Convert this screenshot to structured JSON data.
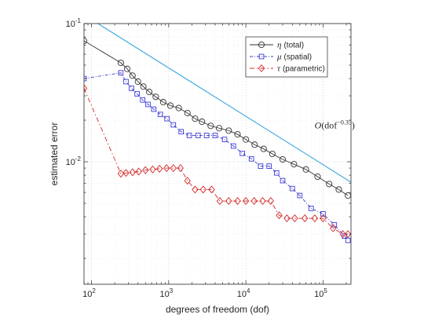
{
  "chart_data": {
    "type": "line",
    "xscale": "log",
    "yscale": "log",
    "xlim": [
      80,
      230000
    ],
    "ylim": [
      0.0013,
      0.1
    ],
    "xlabel": "degrees of freedom (dof)",
    "ylabel": "estimated error",
    "grid": true,
    "legend_position": "top-right",
    "x_ticks": [
      {
        "value": 100,
        "base": "10",
        "exp": "2"
      },
      {
        "value": 1000,
        "base": "10",
        "exp": "3"
      },
      {
        "value": 10000,
        "base": "10",
        "exp": "4"
      },
      {
        "value": 100000,
        "base": "10",
        "exp": "5"
      }
    ],
    "y_ticks": [
      {
        "value": 0.01,
        "base": "10",
        "exp": "-2"
      },
      {
        "value": 0.1,
        "base": "10",
        "exp": "-1"
      }
    ],
    "series": [
      {
        "symbol": "η",
        "name": "(total)",
        "color": "#333333",
        "marker": "circle",
        "dash": "",
        "x": [
          80,
          240,
          290,
          340,
          400,
          470,
          560,
          680,
          850,
          1050,
          1350,
          1750,
          2200,
          2700,
          3500,
          4500,
          6000,
          7800,
          10000,
          13000,
          17000,
          22000,
          30000,
          42000,
          60000,
          85000,
          120000,
          160000,
          210000
        ],
        "y": [
          0.075,
          0.052,
          0.047,
          0.042,
          0.038,
          0.035,
          0.032,
          0.0295,
          0.027,
          0.0255,
          0.0245,
          0.0225,
          0.0205,
          0.0195,
          0.0182,
          0.0175,
          0.0168,
          0.0158,
          0.0145,
          0.0133,
          0.0124,
          0.0114,
          0.0104,
          0.0096,
          0.0088,
          0.0078,
          0.0069,
          0.0063,
          0.0057
        ]
      },
      {
        "symbol": "μ",
        "name": "(spatial)",
        "color": "#3b3bd6",
        "marker": "square",
        "dash": "4 2 1 2",
        "x": [
          80,
          240,
          280,
          330,
          390,
          460,
          540,
          640,
          780,
          950,
          1150,
          1450,
          1850,
          2400,
          3100,
          4000,
          5300,
          6900,
          9000,
          11800,
          15500,
          20000,
          25000,
          30000,
          40000,
          50000,
          70000,
          100000,
          140000,
          190000,
          210000
        ],
        "y": [
          0.04,
          0.044,
          0.038,
          0.034,
          0.031,
          0.028,
          0.026,
          0.024,
          0.022,
          0.0205,
          0.0185,
          0.0165,
          0.0155,
          0.0155,
          0.0155,
          0.0155,
          0.0145,
          0.013,
          0.0115,
          0.0105,
          0.0093,
          0.0093,
          0.0083,
          0.0073,
          0.0064,
          0.0057,
          0.0046,
          0.0042,
          0.0035,
          0.0029,
          0.0027
        ]
      },
      {
        "symbol": "τ",
        "name": "(parametric)",
        "color": "#d42828",
        "marker": "diamond",
        "dash": "6 3 1.5 3",
        "x": [
          80,
          240,
          280,
          340,
          410,
          500,
          620,
          760,
          940,
          1150,
          1420,
          1750,
          2200,
          2800,
          3600,
          4600,
          6000,
          7800,
          10000,
          12800,
          16500,
          21000,
          27000,
          34000,
          43000,
          58000,
          78000,
          100000,
          135000,
          180000,
          210000
        ],
        "y": [
          0.034,
          0.0082,
          0.0083,
          0.0084,
          0.0085,
          0.0087,
          0.0088,
          0.0089,
          0.009,
          0.009,
          0.009,
          0.0073,
          0.0063,
          0.0063,
          0.0063,
          0.0052,
          0.0052,
          0.0052,
          0.0052,
          0.0052,
          0.0052,
          0.0052,
          0.0041,
          0.0039,
          0.0039,
          0.0039,
          0.0039,
          0.0039,
          0.0033,
          0.003,
          0.003
        ]
      }
    ],
    "reference_line": {
      "x": [
        80,
        230000
      ],
      "y": [
        0.1156,
        0.00712
      ],
      "color": "#3aa7e0",
      "label_prefix": "O",
      "label_base": "(dof",
      "label_exp": "−0.35",
      "label_suffix": ")",
      "label_at": [
        130000,
        0.0145
      ]
    }
  }
}
